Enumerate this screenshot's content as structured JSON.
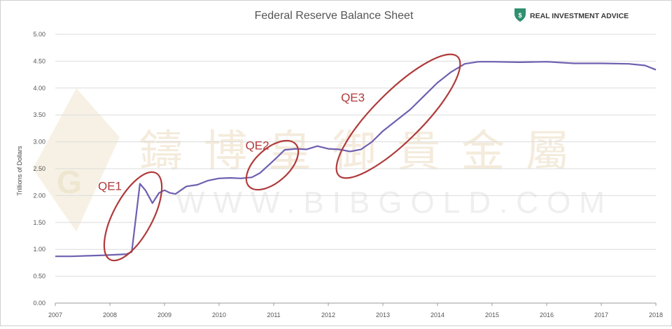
{
  "chart_data": {
    "type": "line",
    "title": "Federal Reserve Balance Sheet",
    "ylabel": "Trillions of Dollars",
    "xlabel": "",
    "ylim": [
      0,
      5
    ],
    "xlim": [
      2007,
      2018
    ],
    "grid": true,
    "legend": "none",
    "y_ticks": [
      "0.00",
      "0.50",
      "1.00",
      "1.50",
      "2.00",
      "2.50",
      "3.00",
      "3.50",
      "4.00",
      "4.50",
      "5.00"
    ],
    "x_ticks": [
      "2007",
      "2008",
      "2009",
      "2010",
      "2011",
      "2012",
      "2013",
      "2014",
      "2015",
      "2016",
      "2017",
      "2018"
    ],
    "series": [
      {
        "x": [
          2007.0,
          2007.3,
          2007.6,
          2007.9,
          2008.1,
          2008.3,
          2008.4,
          2008.55,
          2008.65,
          2008.78,
          2008.9,
          2009.0,
          2009.1,
          2009.2,
          2009.4,
          2009.6,
          2009.8,
          2010.0,
          2010.2,
          2010.4,
          2010.6,
          2010.75,
          2010.9,
          2011.05,
          2011.2,
          2011.4,
          2011.6,
          2011.8,
          2012.0,
          2012.2,
          2012.4,
          2012.6,
          2012.8,
          2013.0,
          2013.25,
          2013.5,
          2013.75,
          2014.0,
          2014.25,
          2014.5,
          2014.75,
          2015.0,
          2015.5,
          2016.0,
          2016.5,
          2017.0,
          2017.5,
          2017.8,
          2018.0
        ],
        "values": [
          0.87,
          0.87,
          0.88,
          0.89,
          0.9,
          0.91,
          0.95,
          2.22,
          2.1,
          1.86,
          2.05,
          2.1,
          2.05,
          2.03,
          2.17,
          2.2,
          2.28,
          2.32,
          2.33,
          2.32,
          2.34,
          2.42,
          2.56,
          2.7,
          2.85,
          2.87,
          2.86,
          2.92,
          2.87,
          2.86,
          2.82,
          2.86,
          3.0,
          3.2,
          3.4,
          3.6,
          3.85,
          4.1,
          4.3,
          4.45,
          4.49,
          4.49,
          4.48,
          4.49,
          4.46,
          4.46,
          4.45,
          4.42,
          4.34
        ]
      }
    ],
    "annotations": [
      {
        "text": "QE1",
        "x": 2008.0,
        "y": 2.1
      },
      {
        "text": "QE2",
        "x": 2010.7,
        "y": 2.86
      },
      {
        "text": "QE3",
        "x": 2012.45,
        "y": 3.75
      }
    ],
    "colors": {
      "line": "#6f5fb0",
      "annotation": "#b03a3a",
      "grid": "#dcdcdc"
    }
  },
  "branding": {
    "logo_text": "REAL INVESTMENT ADVICE",
    "logo_icon": "shield-dollar-icon",
    "watermark_cn": "鑄博皇御貴金屬",
    "watermark_url": "WWW.BIBGOLD.COM",
    "watermark_mark": "G"
  }
}
